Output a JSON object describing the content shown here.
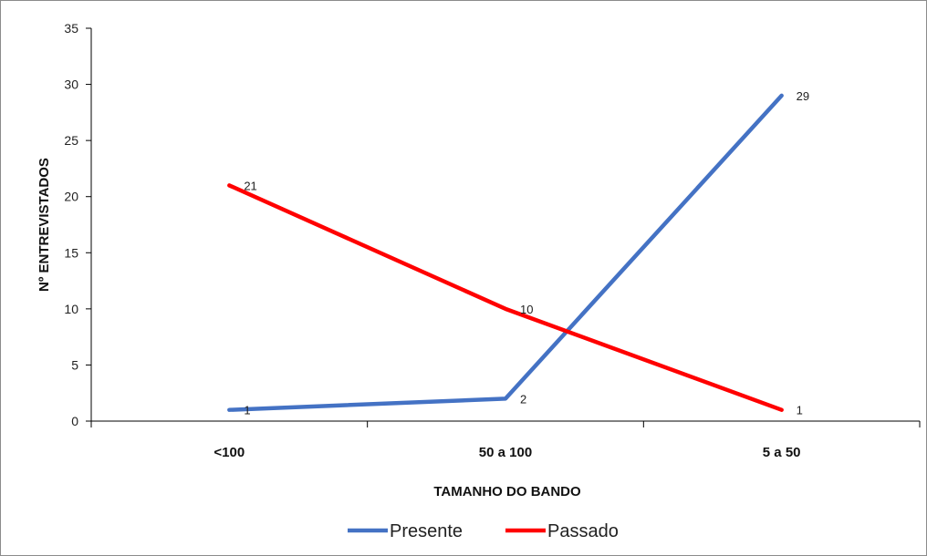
{
  "chart_data": {
    "type": "line",
    "title": "",
    "xlabel": "TAMANHO DO BANDO",
    "ylabel": "Nº ENTREVISTADOS",
    "categories": [
      "<100",
      "50 a 100",
      "5 a 50"
    ],
    "ylim": [
      0,
      35
    ],
    "yticks": [
      0,
      5,
      10,
      15,
      20,
      25,
      30,
      35
    ],
    "grid": false,
    "legend_position": "bottom",
    "series": [
      {
        "name": "Presente",
        "values": [
          1,
          2,
          29
        ],
        "color": "#4472C4",
        "labels": [
          "1",
          "2",
          "29"
        ]
      },
      {
        "name": "Passado",
        "values": [
          21,
          10,
          1
        ],
        "color": "#FF0000",
        "labels": [
          "21",
          "10",
          "1"
        ]
      }
    ]
  }
}
